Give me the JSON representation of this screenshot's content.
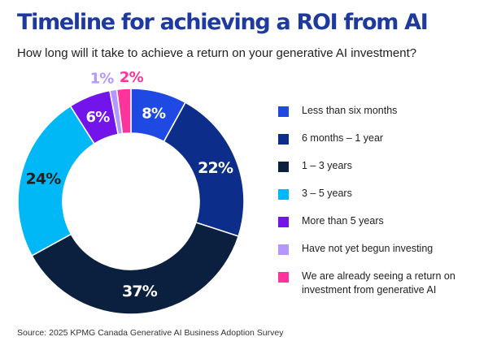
{
  "title": "Timeline for achieving a ROI from AI",
  "subtitle": "How long will it take to achieve a return on your generative AI investment?",
  "source": "Source: 2025 KPMG Canada Generative AI Business Adoption Survey",
  "chart_data": {
    "type": "pie",
    "variant": "donut",
    "title": "Timeline for achieving a ROI from AI",
    "subtitle": "How long will it take to achieve a return on your generative AI investment?",
    "categories": [
      "Less than six months",
      "6 months – 1 year",
      "1 – 3 years",
      "3 – 5 years",
      "More than 5 years",
      "Have not yet begun investing",
      "We are already seeing a return on investment from generative AI"
    ],
    "values": [
      8,
      22,
      37,
      24,
      6,
      1,
      2
    ],
    "data_labels": [
      "8%",
      "22%",
      "37%",
      "24%",
      "6%",
      "1%",
      "2%"
    ],
    "colors": [
      "#1e49e2",
      "#0c2e8a",
      "#0b1f3e",
      "#00b8f5",
      "#7214ea",
      "#b497ff",
      "#fd349c"
    ],
    "label_colors": [
      "#ffffff",
      "#ffffff",
      "#ffffff",
      "#1f1f1f",
      "#ffffff",
      "#b497ff",
      "#fd349c"
    ],
    "label_outside": [
      false,
      false,
      false,
      false,
      false,
      true,
      true
    ],
    "legend_position": "right",
    "start": "top",
    "direction": "clockwise"
  }
}
